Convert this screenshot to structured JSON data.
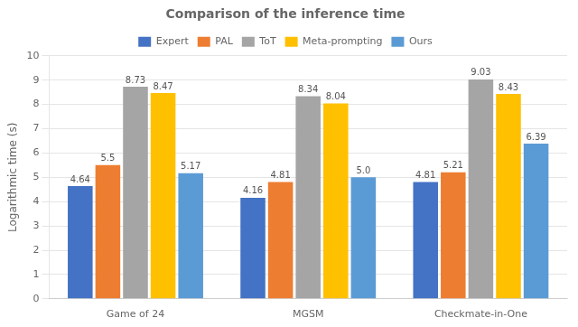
{
  "chart_data": {
    "type": "bar",
    "title": "Comparison of the inference time",
    "ylabel": "Logarithmic time (s)",
    "categories": [
      "Game of 24",
      "MGSM",
      "Checkmate-in-One"
    ],
    "series": [
      {
        "name": "Expert",
        "color": "#4472C4",
        "values": [
          4.64,
          4.16,
          4.81
        ]
      },
      {
        "name": "PAL",
        "color": "#ED7D31",
        "values": [
          5.5,
          4.81,
          5.21
        ]
      },
      {
        "name": "ToT",
        "color": "#A5A5A5",
        "values": [
          8.73,
          8.34,
          9.03
        ]
      },
      {
        "name": "Meta-prompting",
        "color": "#FFC000",
        "values": [
          8.47,
          8.04,
          8.43
        ]
      },
      {
        "name": "Ours",
        "color": "#5B9BD5",
        "values": [
          5.17,
          5.0,
          6.39
        ],
        "value_labels": [
          "5.17",
          "5.0",
          "6.39"
        ]
      }
    ],
    "ylim": [
      0,
      10
    ],
    "yticks": [
      0,
      1,
      2,
      3,
      4,
      5,
      6,
      7,
      8,
      9,
      10
    ],
    "grid": true,
    "legend": "top",
    "data_labels": true
  }
}
